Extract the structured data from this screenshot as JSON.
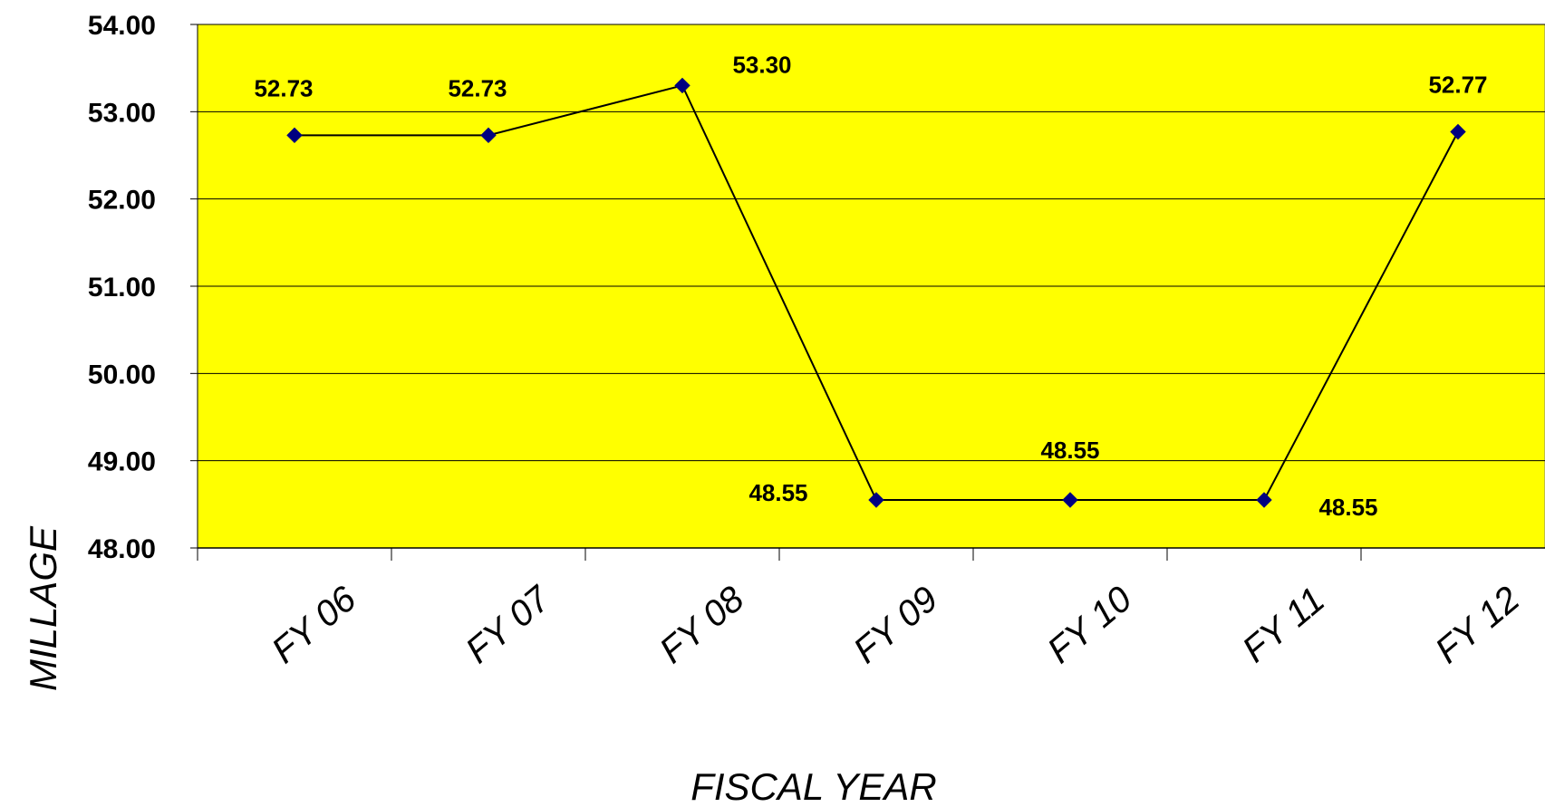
{
  "chart_data": {
    "type": "line",
    "title": "",
    "xlabel": "FISCAL YEAR",
    "ylabel": "MILLAGE",
    "categories": [
      "FY 06",
      "FY 07",
      "FY 08",
      "FY 09",
      "FY 10",
      "FY 11",
      "FY 12"
    ],
    "series": [
      {
        "values": [
          52.73,
          52.73,
          53.3,
          48.55,
          48.55,
          48.55,
          52.77
        ],
        "data_labels": [
          "52.73",
          "52.73",
          "53.30",
          "48.55",
          "48.55",
          "48.55",
          "52.77"
        ]
      }
    ],
    "ylim": [
      48.0,
      54.0
    ],
    "yticks": [
      54.0,
      53.0,
      52.0,
      51.0,
      50.0,
      49.0,
      48.0
    ],
    "ytick_labels": [
      "54.00",
      "53.00",
      "52.00",
      "51.00",
      "50.00",
      "49.00",
      "48.00"
    ],
    "grid": true,
    "legend": "none"
  },
  "colors": {
    "plot_background": "#FFFF00",
    "line": "#000000",
    "marker": "#000080",
    "gridline": "#000000"
  }
}
